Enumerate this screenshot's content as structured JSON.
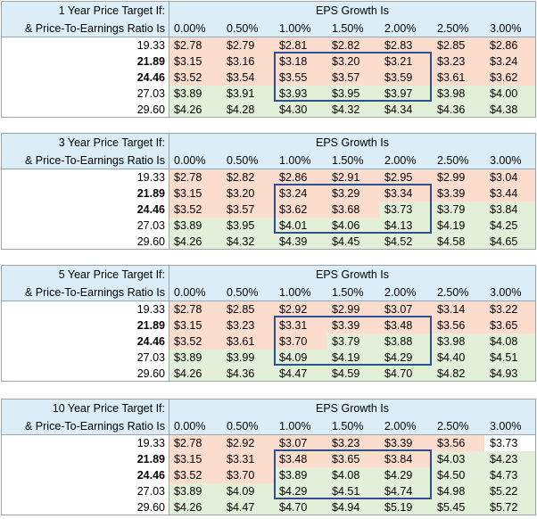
{
  "colors": {
    "header_bg": "#dbeef7",
    "red_bg": "#fbdccd",
    "green_bg": "#e2efd9",
    "box": "#2f4f8f",
    "grid": "#9aa3a8"
  },
  "eps_header": "EPS Growth Is",
  "row_label_2": "& Price-To-Earnings Ratio Is",
  "growth": [
    "0.00%",
    "0.50%",
    "1.00%",
    "1.50%",
    "2.00%",
    "2.50%",
    "3.00%"
  ],
  "pe": [
    "19.33",
    "21.89",
    "24.46",
    "27.03",
    "29.60"
  ],
  "pe_bold": [
    false,
    true,
    true,
    false,
    false
  ],
  "tables": [
    {
      "title": "1 Year Price Target If:",
      "rows": [
        [
          "$2.78",
          "$2.79",
          "$2.81",
          "$2.82",
          "$2.83",
          "$2.85",
          "$2.86"
        ],
        [
          "$3.15",
          "$3.16",
          "$3.18",
          "$3.20",
          "$3.21",
          "$3.23",
          "$3.24"
        ],
        [
          "$3.52",
          "$3.54",
          "$3.55",
          "$3.57",
          "$3.59",
          "$3.61",
          "$3.62"
        ],
        [
          "$3.89",
          "$3.91",
          "$3.93",
          "$3.95",
          "$3.97",
          "$3.98",
          "$4.00"
        ],
        [
          "$4.26",
          "$4.28",
          "$4.30",
          "$4.32",
          "$4.34",
          "$4.36",
          "$4.38"
        ]
      ],
      "shade": [
        [
          "r",
          "r",
          "r",
          "r",
          "r",
          "r",
          "r"
        ],
        [
          "r",
          "r",
          "r",
          "r",
          "r",
          "r",
          "r"
        ],
        [
          "r",
          "r",
          "r",
          "r",
          "r",
          "r",
          "r"
        ],
        [
          "g",
          "g",
          "g",
          "g",
          "g",
          "g",
          "g"
        ],
        [
          "g",
          "g",
          "g",
          "g",
          "g",
          "g",
          "g"
        ]
      ]
    },
    {
      "title": "3 Year Price Target If:",
      "rows": [
        [
          "$2.78",
          "$2.82",
          "$2.86",
          "$2.91",
          "$2.95",
          "$2.99",
          "$3.04"
        ],
        [
          "$3.15",
          "$3.20",
          "$3.24",
          "$3.29",
          "$3.34",
          "$3.39",
          "$3.44"
        ],
        [
          "$3.52",
          "$3.57",
          "$3.62",
          "$3.68",
          "$3.73",
          "$3.79",
          "$3.84"
        ],
        [
          "$3.89",
          "$3.95",
          "$4.01",
          "$4.06",
          "$4.13",
          "$4.19",
          "$4.25"
        ],
        [
          "$4.26",
          "$4.32",
          "$4.39",
          "$4.45",
          "$4.52",
          "$4.58",
          "$4.65"
        ]
      ],
      "shade": [
        [
          "r",
          "r",
          "r",
          "r",
          "r",
          "r",
          "r"
        ],
        [
          "r",
          "r",
          "r",
          "r",
          "r",
          "r",
          "r"
        ],
        [
          "r",
          "r",
          "r",
          "r",
          "g",
          "g",
          "g"
        ],
        [
          "g",
          "g",
          "g",
          "g",
          "g",
          "g",
          "g"
        ],
        [
          "g",
          "g",
          "g",
          "g",
          "g",
          "g",
          "g"
        ]
      ]
    },
    {
      "title": "5 Year Price Target If:",
      "rows": [
        [
          "$2.78",
          "$2.85",
          "$2.92",
          "$2.99",
          "$3.07",
          "$3.14",
          "$3.22"
        ],
        [
          "$3.15",
          "$3.23",
          "$3.31",
          "$3.39",
          "$3.48",
          "$3.56",
          "$3.65"
        ],
        [
          "$3.52",
          "$3.61",
          "$3.70",
          "$3.79",
          "$3.88",
          "$3.98",
          "$4.08"
        ],
        [
          "$3.89",
          "$3.99",
          "$4.09",
          "$4.19",
          "$4.29",
          "$4.40",
          "$4.51"
        ],
        [
          "$4.26",
          "$4.36",
          "$4.47",
          "$4.59",
          "$4.70",
          "$4.82",
          "$4.93"
        ]
      ],
      "shade": [
        [
          "r",
          "r",
          "r",
          "r",
          "r",
          "r",
          "r"
        ],
        [
          "r",
          "r",
          "r",
          "r",
          "r",
          "r",
          "r"
        ],
        [
          "r",
          "r",
          "r",
          "g",
          "g",
          "g",
          "g"
        ],
        [
          "g",
          "g",
          "g",
          "g",
          "g",
          "g",
          "g"
        ],
        [
          "g",
          "g",
          "g",
          "g",
          "g",
          "g",
          "g"
        ]
      ]
    },
    {
      "title": "10 Year Price Target If:",
      "rows": [
        [
          "$2.78",
          "$2.92",
          "$3.07",
          "$3.23",
          "$3.39",
          "$3.56",
          "$3.73"
        ],
        [
          "$3.15",
          "$3.31",
          "$3.48",
          "$3.65",
          "$3.84",
          "$4.03",
          "$4.23"
        ],
        [
          "$3.52",
          "$3.70",
          "$3.89",
          "$4.08",
          "$4.29",
          "$4.50",
          "$4.73"
        ],
        [
          "$3.89",
          "$4.09",
          "$4.29",
          "$4.51",
          "$4.74",
          "$4.98",
          "$5.22"
        ],
        [
          "$4.26",
          "$4.47",
          "$4.70",
          "$4.94",
          "$5.19",
          "$5.45",
          "$5.72"
        ]
      ],
      "shade": [
        [
          "r",
          "r",
          "r",
          "r",
          "r",
          "r",
          "w"
        ],
        [
          "r",
          "r",
          "r",
          "r",
          "r",
          "g",
          "g"
        ],
        [
          "r",
          "r",
          "g",
          "g",
          "g",
          "g",
          "g"
        ],
        [
          "g",
          "g",
          "g",
          "g",
          "g",
          "g",
          "g"
        ],
        [
          "g",
          "g",
          "g",
          "g",
          "g",
          "g",
          "g"
        ]
      ]
    }
  ]
}
